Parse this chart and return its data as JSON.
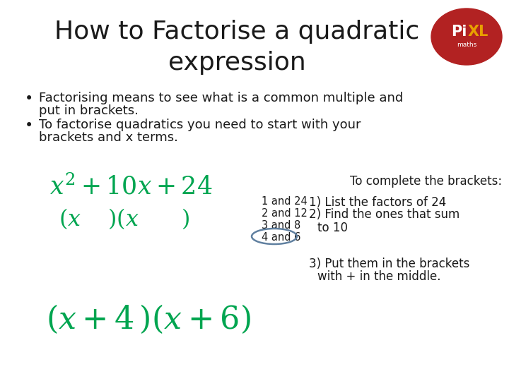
{
  "title_line1": "How to Factorise a quadratic",
  "title_line2": "expression",
  "title_fontsize": 26,
  "title_color": "#1a1a1a",
  "bullet1_line1": "Factorising means to see what is a common multiple and",
  "bullet1_line2": "put in brackets.",
  "bullet2_line1": "To factorise quadratics you need to start with your",
  "bullet2_line2": "brackets and x terms.",
  "bullet_fontsize": 13,
  "bullet_color": "#1a1a1a",
  "green_color": "#00a550",
  "dark_color": "#1a1a1a",
  "bg_color": "#ffffff",
  "factors_label1": "1 and 24",
  "factors_label2": "2 and 12",
  "factors_label3": "3 and 8",
  "factors_label4": "4 and 6",
  "complete_title": "To complete the brackets:",
  "step1": "1) List the factors of 24",
  "step2": "2) Find the ones that sum",
  "step2b": "      to 10",
  "step3": "3) Put them in the brackets",
  "step3b": "    with + in the middle.",
  "pixl_color": "#b22222",
  "circle_color": "#6080a0",
  "expr1": "$x^2 + 10x + 24$",
  "expr2": "$(x\\quad)(x\\quad\\quad)$",
  "expr3": "$(x + 4\\,)(x + 6)$"
}
